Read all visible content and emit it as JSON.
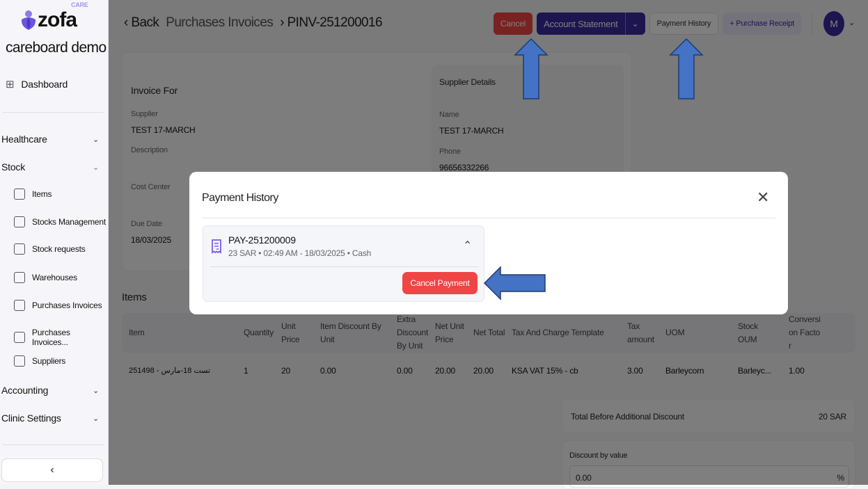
{
  "brand": {
    "logo_text": "zofa",
    "logo_sup": "CARE",
    "org_name": "careboard demo"
  },
  "sidebar": {
    "dashboard": "Dashboard",
    "groups": [
      {
        "label": "Healthcare"
      },
      {
        "label": "Stock"
      },
      {
        "label": "Accounting"
      },
      {
        "label": "Clinic Settings"
      }
    ],
    "stock_items": [
      "Items",
      "Stocks Management",
      "Stock requests",
      "Warehouses",
      "Purchases Invoices",
      "Purchases Invoices...",
      "Suppliers"
    ],
    "collapse_icon": "chevron-left"
  },
  "header": {
    "back": "Back",
    "breadcrumb_parent": "Purchases Invoices",
    "breadcrumb_current": "PINV-251200016",
    "cancel": "Cancel",
    "account_statement": "Account Statement",
    "payment_history": "Payment History",
    "purchase_receipt": "Purchase Receipt",
    "avatar": "M"
  },
  "invoice": {
    "title": "Invoice For",
    "supplier_label": "Supplier",
    "supplier": "TEST 17-MARCH",
    "description_label": "Description",
    "cost_center_label": "Cost Center",
    "due_date_label": "Due Date",
    "due_date": "18/03/2025"
  },
  "supplier_details": {
    "title": "Supplier Details",
    "name_label": "Name",
    "name": "TEST 17-MARCH",
    "phone_label": "Phone",
    "phone": "96656332266"
  },
  "items": {
    "title": "Items",
    "columns": [
      "Item",
      "Quantity",
      "Unit Price",
      "Item Discount By Unit",
      "Extra Discount By Unit",
      "Net Unit Price",
      "Net Total",
      "Tax And Charge Template",
      "Tax amount",
      "UOM",
      "Stock OUM",
      "Conversion Factor"
    ],
    "rows": [
      [
        "251498 - تست 18-مارس",
        "1",
        "20",
        "0.00",
        "0.00",
        "20.00",
        "20.00",
        "KSA VAT 15% - cb",
        "3.00",
        "Barleycorn",
        "Barleyc...",
        "1.00"
      ]
    ]
  },
  "totals": {
    "before_discount_label": "Total Before Additional Discount",
    "before_discount": "20 SAR",
    "discount_label": "Discount by value",
    "discount_value": "0.00",
    "percent": "%"
  },
  "modal": {
    "title": "Payment History",
    "payment": {
      "id": "PAY-251200009",
      "details": "23 SAR • 02:49 AM - 18/03/2025 • Cash",
      "cancel_button": "Cancel Payment"
    }
  },
  "colors": {
    "primary": "#3b2aa0",
    "danger": "#f04545",
    "annotation_arrow": "#4472c4"
  }
}
